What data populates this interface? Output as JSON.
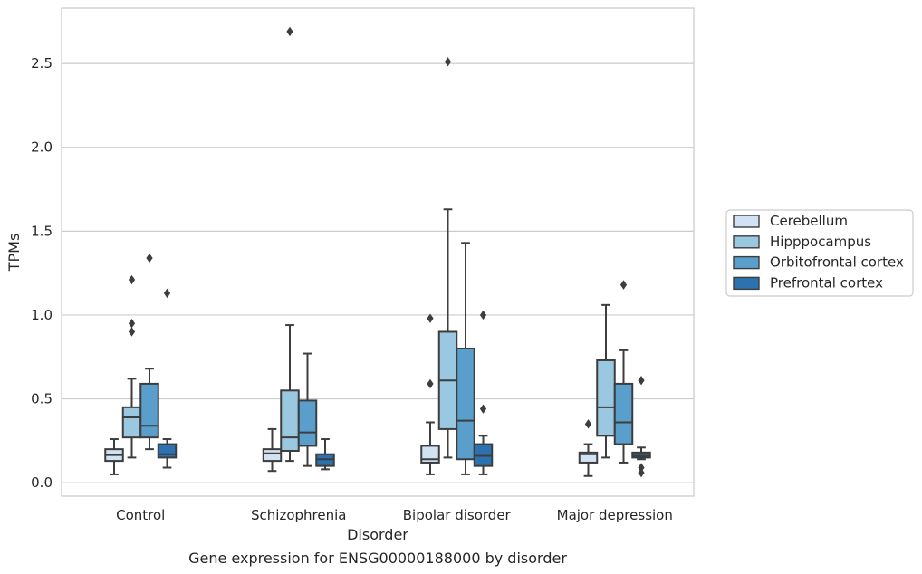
{
  "chart_data": {
    "type": "box",
    "title": "Gene expression for ENSG00000188000 by disorder",
    "xlabel": "Disorder",
    "ylabel": "TPMs",
    "ylim": [
      -0.08,
      2.83
    ],
    "yticks": [
      "0.0",
      "0.5",
      "1.0",
      "1.5",
      "2.0",
      "2.5"
    ],
    "ytick_values": [
      0,
      0.5,
      1.0,
      1.5,
      2.0,
      2.5
    ],
    "grid": "horizontal",
    "legend_position": "right",
    "categories": [
      "Control",
      "Schizophrenia",
      "Bipolar disorder",
      "Major depression"
    ],
    "series": [
      {
        "name": "Cerebellum",
        "color": "#d1e2f2",
        "boxes": [
          {
            "whisker_low": 0.05,
            "q1": 0.13,
            "median": 0.165,
            "q3": 0.2,
            "whisker_high": 0.26,
            "outliers": []
          },
          {
            "whisker_low": 0.07,
            "q1": 0.13,
            "median": 0.175,
            "q3": 0.2,
            "whisker_high": 0.32,
            "outliers": []
          },
          {
            "whisker_low": 0.05,
            "q1": 0.12,
            "median": 0.14,
            "q3": 0.22,
            "whisker_high": 0.36,
            "outliers": [
              0.59,
              0.98
            ]
          },
          {
            "whisker_low": 0.04,
            "q1": 0.12,
            "median": 0.17,
            "q3": 0.18,
            "whisker_high": 0.23,
            "outliers": [
              0.35
            ]
          }
        ]
      },
      {
        "name": "Hipppocampus",
        "color": "#9ac8e0",
        "boxes": [
          {
            "whisker_low": 0.15,
            "q1": 0.27,
            "median": 0.39,
            "q3": 0.45,
            "whisker_high": 0.62,
            "outliers": [
              0.9,
              0.95,
              1.21
            ]
          },
          {
            "whisker_low": 0.13,
            "q1": 0.19,
            "median": 0.27,
            "q3": 0.55,
            "whisker_high": 0.94,
            "outliers": [
              2.69
            ]
          },
          {
            "whisker_low": 0.15,
            "q1": 0.32,
            "median": 0.61,
            "q3": 0.9,
            "whisker_high": 1.63,
            "outliers": [
              2.51
            ]
          },
          {
            "whisker_low": 0.15,
            "q1": 0.28,
            "median": 0.45,
            "q3": 0.73,
            "whisker_high": 1.06,
            "outliers": []
          }
        ]
      },
      {
        "name": "Orbitofrontal cortex",
        "color": "#5a9fcc",
        "boxes": [
          {
            "whisker_low": 0.2,
            "q1": 0.27,
            "median": 0.34,
            "q3": 0.59,
            "whisker_high": 0.68,
            "outliers": [
              1.34
            ]
          },
          {
            "whisker_low": 0.1,
            "q1": 0.22,
            "median": 0.3,
            "q3": 0.49,
            "whisker_high": 0.77,
            "outliers": []
          },
          {
            "whisker_low": 0.05,
            "q1": 0.14,
            "median": 0.37,
            "q3": 0.8,
            "whisker_high": 1.43,
            "outliers": []
          },
          {
            "whisker_low": 0.12,
            "q1": 0.23,
            "median": 0.36,
            "q3": 0.59,
            "whisker_high": 0.79,
            "outliers": [
              1.18
            ]
          }
        ]
      },
      {
        "name": "Prefrontal cortex",
        "color": "#2c72b0",
        "boxes": [
          {
            "whisker_low": 0.09,
            "q1": 0.15,
            "median": 0.17,
            "q3": 0.23,
            "whisker_high": 0.26,
            "outliers": [
              1.13
            ]
          },
          {
            "whisker_low": 0.08,
            "q1": 0.1,
            "median": 0.14,
            "q3": 0.17,
            "whisker_high": 0.26,
            "outliers": []
          },
          {
            "whisker_low": 0.05,
            "q1": 0.1,
            "median": 0.16,
            "q3": 0.23,
            "whisker_high": 0.28,
            "outliers": [
              0.44,
              1.0
            ]
          },
          {
            "whisker_low": 0.14,
            "q1": 0.15,
            "median": 0.16,
            "q3": 0.18,
            "whisker_high": 0.21,
            "outliers": [
              0.06,
              0.09,
              0.61
            ]
          }
        ]
      }
    ]
  }
}
